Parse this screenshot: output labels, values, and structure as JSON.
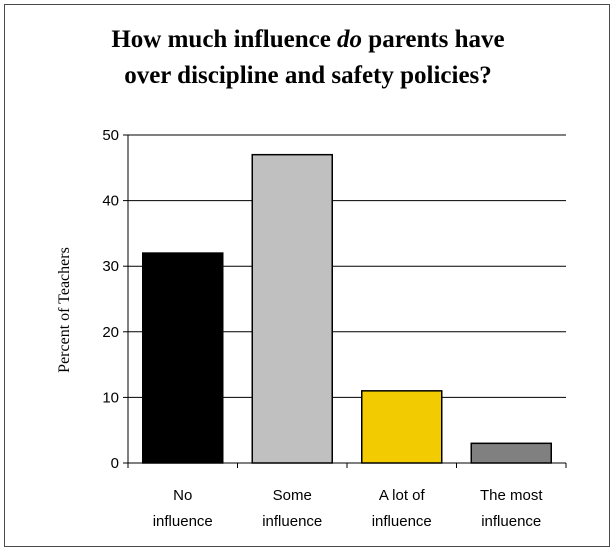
{
  "chart_data": {
    "type": "bar",
    "title_parts": [
      {
        "text": "How much influence ",
        "italic": false
      },
      {
        "text": "do",
        "italic": true
      },
      {
        "text": " parents have",
        "italic": false
      },
      {
        "text": "over discipline and safety policies?",
        "italic": false,
        "newline": true
      }
    ],
    "ylabel": "Percent of Teachers",
    "xlabel": "",
    "categories": [
      [
        "No",
        "influence"
      ],
      [
        "Some",
        "influence"
      ],
      [
        "A lot of",
        "influence"
      ],
      [
        "The most",
        "influence"
      ]
    ],
    "values": [
      32,
      47,
      11,
      3
    ],
    "bar_colors": [
      "#000000",
      "#c0c0c0",
      "#f2cc00",
      "#808080"
    ],
    "ylim": [
      0,
      50
    ],
    "yticks": [
      0,
      10,
      20,
      30,
      40,
      50
    ],
    "grid": true,
    "legend": "none"
  }
}
